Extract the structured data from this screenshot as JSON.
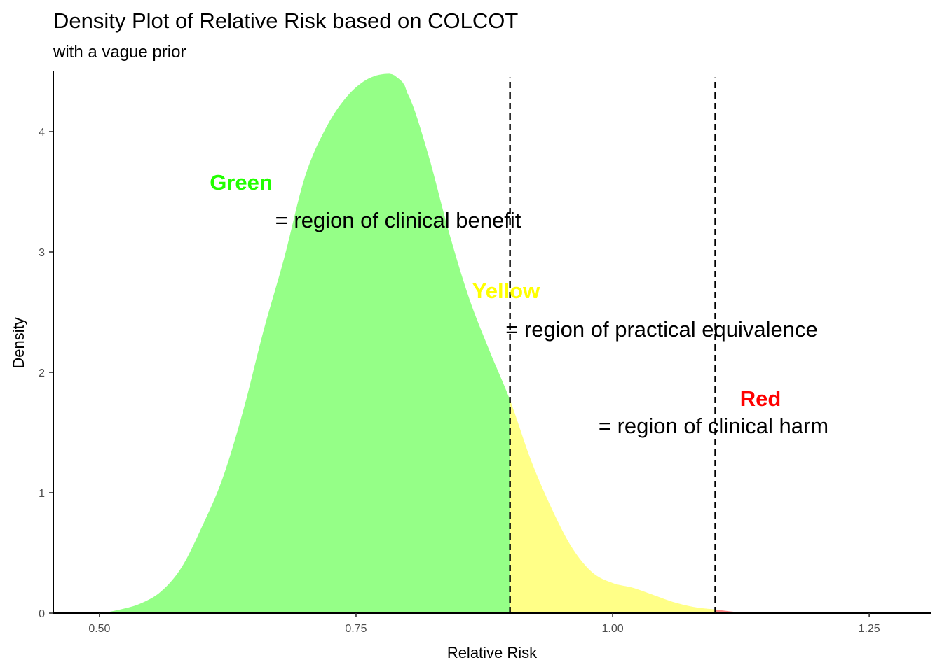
{
  "chart_data": {
    "type": "area",
    "title": "Density Plot of Relative Risk based on COLCOT",
    "subtitle": "with a vague prior",
    "xlabel": "Relative Risk",
    "ylabel": "Density",
    "xlim": [
      0.455,
      1.31
    ],
    "ylim": [
      0,
      4.5
    ],
    "x_ticks": [
      {
        "value": 0.5,
        "label": "0.50"
      },
      {
        "value": 0.75,
        "label": "0.75"
      },
      {
        "value": 1.0,
        "label": "1.00"
      },
      {
        "value": 1.25,
        "label": "1.25"
      }
    ],
    "y_ticks": [
      {
        "value": 0,
        "label": "0"
      },
      {
        "value": 1,
        "label": "1"
      },
      {
        "value": 2,
        "label": "2"
      },
      {
        "value": 3,
        "label": "3"
      },
      {
        "value": 4,
        "label": "4"
      }
    ],
    "grid": false,
    "thresholds": [
      0.9,
      1.1
    ],
    "threshold_top": 4.45,
    "regions": [
      {
        "id": "green",
        "from": 0.5,
        "to": 0.9,
        "color": "#95ff87"
      },
      {
        "id": "yellow",
        "from": 0.9,
        "to": 1.1,
        "color": "#ffff87"
      },
      {
        "id": "red",
        "from": 1.1,
        "to": 1.13,
        "color": "#ff8787"
      }
    ],
    "density": {
      "x": [
        0.5,
        0.52,
        0.54,
        0.56,
        0.58,
        0.6,
        0.62,
        0.64,
        0.66,
        0.68,
        0.7,
        0.72,
        0.74,
        0.76,
        0.78,
        0.79,
        0.8,
        0.82,
        0.84,
        0.86,
        0.88,
        0.9,
        0.92,
        0.94,
        0.96,
        0.98,
        1.0,
        1.02,
        1.04,
        1.06,
        1.08,
        1.1,
        1.12,
        1.13
      ],
      "y": [
        0.0,
        0.03,
        0.08,
        0.18,
        0.38,
        0.72,
        1.12,
        1.68,
        2.35,
        2.95,
        3.62,
        4.02,
        4.28,
        4.43,
        4.48,
        4.45,
        4.32,
        3.82,
        3.18,
        2.62,
        2.18,
        1.77,
        1.28,
        0.88,
        0.55,
        0.34,
        0.25,
        0.21,
        0.15,
        0.09,
        0.05,
        0.03,
        0.01,
        0.0
      ]
    },
    "annotations": [
      {
        "key": "Green",
        "text": "= region of clinical benefit",
        "color": "#22ff00"
      },
      {
        "key": "Yellow",
        "text": "= region of practical equivalence",
        "color": "#ffff00"
      },
      {
        "key": "Red",
        "text": "= region of clinical harm",
        "color": "#ff0000"
      }
    ]
  }
}
